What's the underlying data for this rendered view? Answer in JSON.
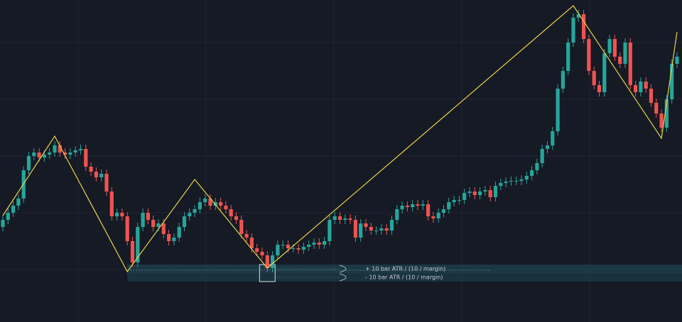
{
  "chart_data": {
    "type": "candlestick",
    "ylim": [
      0,
      454
    ],
    "up_color": "#26a69a",
    "down_color": "#ef5350",
    "zigzag_color": "#e8d34a",
    "zone_color": "#1d4350",
    "open": [
      134,
      144,
      154,
      164,
      174,
      214,
      234,
      239,
      232,
      236,
      239,
      249,
      239,
      236,
      239,
      242,
      244,
      219,
      212,
      204,
      209,
      184,
      149,
      154,
      149,
      114,
      84,
      134,
      154,
      144,
      134,
      139,
      124,
      114,
      119,
      134,
      149,
      154,
      159,
      169,
      174,
      164,
      169,
      164,
      159,
      149,
      144,
      124,
      119,
      104,
      99,
      94,
      76,
      94,
      109,
      109,
      104,
      104,
      102,
      106,
      109,
      112,
      109,
      114,
      144,
      149,
      144,
      146,
      144,
      119,
      139,
      134,
      129,
      129,
      132,
      129,
      144,
      159,
      164,
      162,
      166,
      164,
      166,
      149,
      146,
      154,
      159,
      169,
      172,
      172,
      182,
      184,
      179,
      184,
      186,
      176,
      192,
      196,
      198,
      199,
      199,
      201,
      206,
      214,
      224,
      244,
      249,
      269,
      329,
      354,
      394,
      429,
      434,
      399,
      354,
      334,
      324,
      379,
      399,
      374,
      364,
      394,
      334,
      324,
      339,
      329,
      309,
      294,
      274,
      314,
      364
    ],
    "high": [
      150,
      160,
      170,
      180,
      220,
      240,
      245,
      245,
      242,
      245,
      255,
      255,
      245,
      245,
      248,
      250,
      250,
      225,
      218,
      215,
      215,
      190,
      160,
      160,
      155,
      120,
      140,
      160,
      160,
      150,
      145,
      145,
      130,
      125,
      140,
      155,
      160,
      165,
      175,
      180,
      180,
      175,
      175,
      170,
      165,
      155,
      150,
      130,
      125,
      110,
      105,
      100,
      100,
      115,
      115,
      115,
      110,
      110,
      112,
      115,
      118,
      118,
      120,
      150,
      155,
      155,
      152,
      152,
      150,
      145,
      145,
      140,
      135,
      138,
      138,
      150,
      165,
      170,
      170,
      172,
      172,
      172,
      172,
      155,
      160,
      165,
      175,
      178,
      178,
      188,
      190,
      190,
      190,
      192,
      192,
      198,
      202,
      204,
      205,
      205,
      207,
      212,
      220,
      230,
      250,
      255,
      275,
      335,
      360,
      400,
      435,
      440,
      440,
      405,
      360,
      340,
      385,
      405,
      405,
      380,
      400,
      400,
      340,
      345,
      345,
      335,
      315,
      300,
      320,
      370,
      380
    ],
    "low": [
      128,
      138,
      148,
      158,
      168,
      208,
      228,
      226,
      226,
      230,
      233,
      233,
      230,
      230,
      233,
      236,
      213,
      206,
      198,
      198,
      178,
      143,
      143,
      143,
      108,
      78,
      78,
      128,
      138,
      128,
      128,
      118,
      108,
      108,
      113,
      128,
      143,
      148,
      153,
      163,
      158,
      158,
      158,
      153,
      143,
      138,
      118,
      113,
      98,
      93,
      88,
      70,
      70,
      88,
      103,
      98,
      98,
      96,
      96,
      100,
      103,
      103,
      103,
      108,
      138,
      138,
      138,
      138,
      113,
      113,
      128,
      123,
      123,
      123,
      123,
      123,
      138,
      153,
      156,
      156,
      158,
      158,
      143,
      140,
      140,
      148,
      153,
      163,
      166,
      166,
      176,
      173,
      173,
      178,
      170,
      170,
      186,
      190,
      192,
      193,
      193,
      195,
      200,
      208,
      218,
      238,
      243,
      263,
      323,
      348,
      388,
      423,
      393,
      348,
      328,
      318,
      318,
      373,
      368,
      358,
      358,
      328,
      318,
      318,
      323,
      303,
      288,
      268,
      268,
      308,
      358
    ],
    "close": [
      144,
      154,
      164,
      174,
      214,
      234,
      239,
      232,
      236,
      239,
      249,
      239,
      236,
      239,
      242,
      244,
      219,
      212,
      204,
      209,
      184,
      149,
      154,
      149,
      114,
      84,
      134,
      154,
      144,
      134,
      139,
      124,
      114,
      119,
      134,
      149,
      154,
      159,
      169,
      174,
      164,
      169,
      164,
      159,
      149,
      144,
      124,
      119,
      104,
      99,
      94,
      76,
      94,
      109,
      109,
      104,
      104,
      102,
      106,
      109,
      112,
      109,
      114,
      144,
      149,
      144,
      146,
      144,
      119,
      139,
      134,
      129,
      129,
      132,
      129,
      144,
      159,
      164,
      162,
      166,
      164,
      166,
      149,
      146,
      154,
      159,
      169,
      172,
      172,
      182,
      184,
      179,
      184,
      186,
      176,
      192,
      196,
      198,
      199,
      199,
      201,
      206,
      214,
      224,
      244,
      249,
      269,
      329,
      354,
      394,
      429,
      434,
      399,
      354,
      334,
      324,
      379,
      399,
      374,
      364,
      394,
      334,
      324,
      339,
      329,
      309,
      294,
      274,
      314,
      364,
      374
    ],
    "zigzag": {
      "x": [
        0,
        10,
        24,
        37,
        51,
        110,
        127,
        130
      ],
      "values": [
        150,
        262,
        71,
        201,
        76,
        446,
        259,
        409
      ]
    },
    "zone": {
      "start": 24,
      "top": 81,
      "mid": 69,
      "bottom": 57,
      "box_start": 49.5,
      "box_end": 52.5
    },
    "zone_labels": [
      "+ 10 bar ATR / (10 / margin)",
      "- 10 bar ATR / (10 / margin)"
    ]
  }
}
